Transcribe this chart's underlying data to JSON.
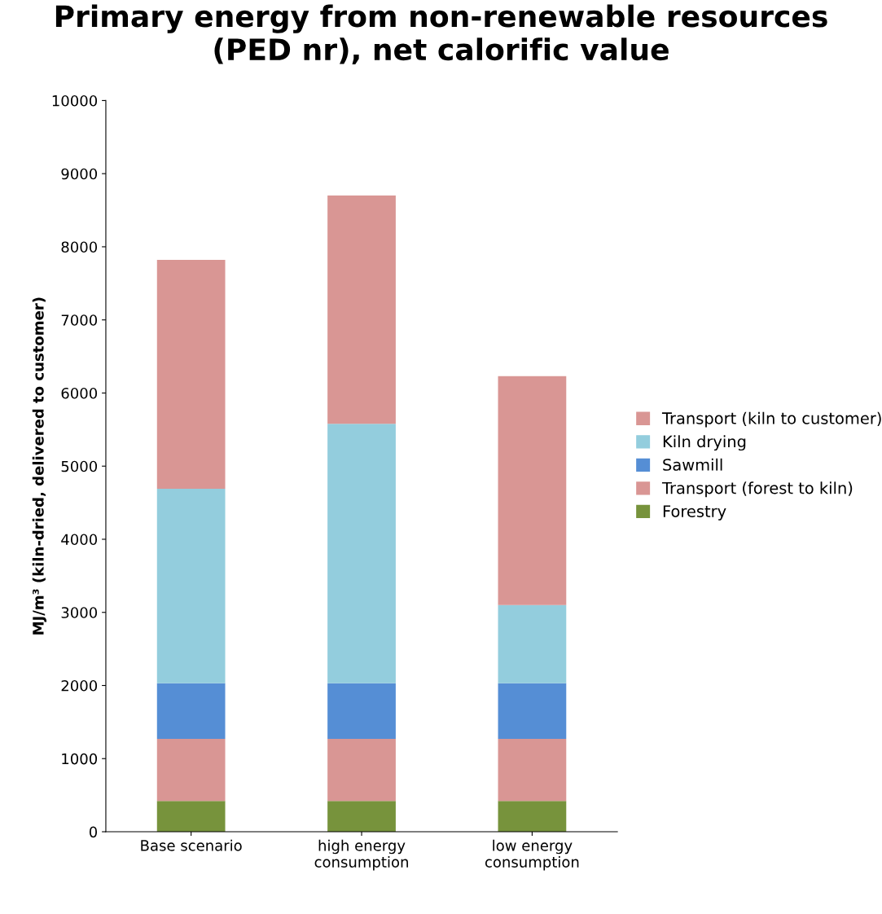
{
  "chart_data": {
    "type": "bar",
    "stacked": true,
    "title": "Primary energy from non-renewable resources\n(PED nr), net calorific value",
    "ylabel": "MJ/m³ (kiln-dried, delivered to customer)",
    "categories": [
      "Base scenario",
      "high energy\nconsumption",
      "low energy\nconsumption"
    ],
    "series": [
      {
        "name": "Forestry",
        "color": "#77933c",
        "values": [
          420,
          420,
          420
        ]
      },
      {
        "name": "Transport (forest to kiln)",
        "color": "#d99694",
        "values": [
          850,
          850,
          850
        ]
      },
      {
        "name": "Sawmill",
        "color": "#558ed5",
        "values": [
          760,
          760,
          760
        ]
      },
      {
        "name": "Kiln drying",
        "color": "#93cddd",
        "values": [
          2660,
          3550,
          1070
        ]
      },
      {
        "name": "Transport (kiln to customer)",
        "color": "#d99694",
        "values": [
          3130,
          3120,
          3130
        ]
      }
    ],
    "ylim": [
      0,
      10000
    ],
    "yticks": [
      0,
      1000,
      2000,
      3000,
      4000,
      5000,
      6000,
      7000,
      8000,
      9000,
      10000
    ],
    "grid": false,
    "legend": "right"
  }
}
